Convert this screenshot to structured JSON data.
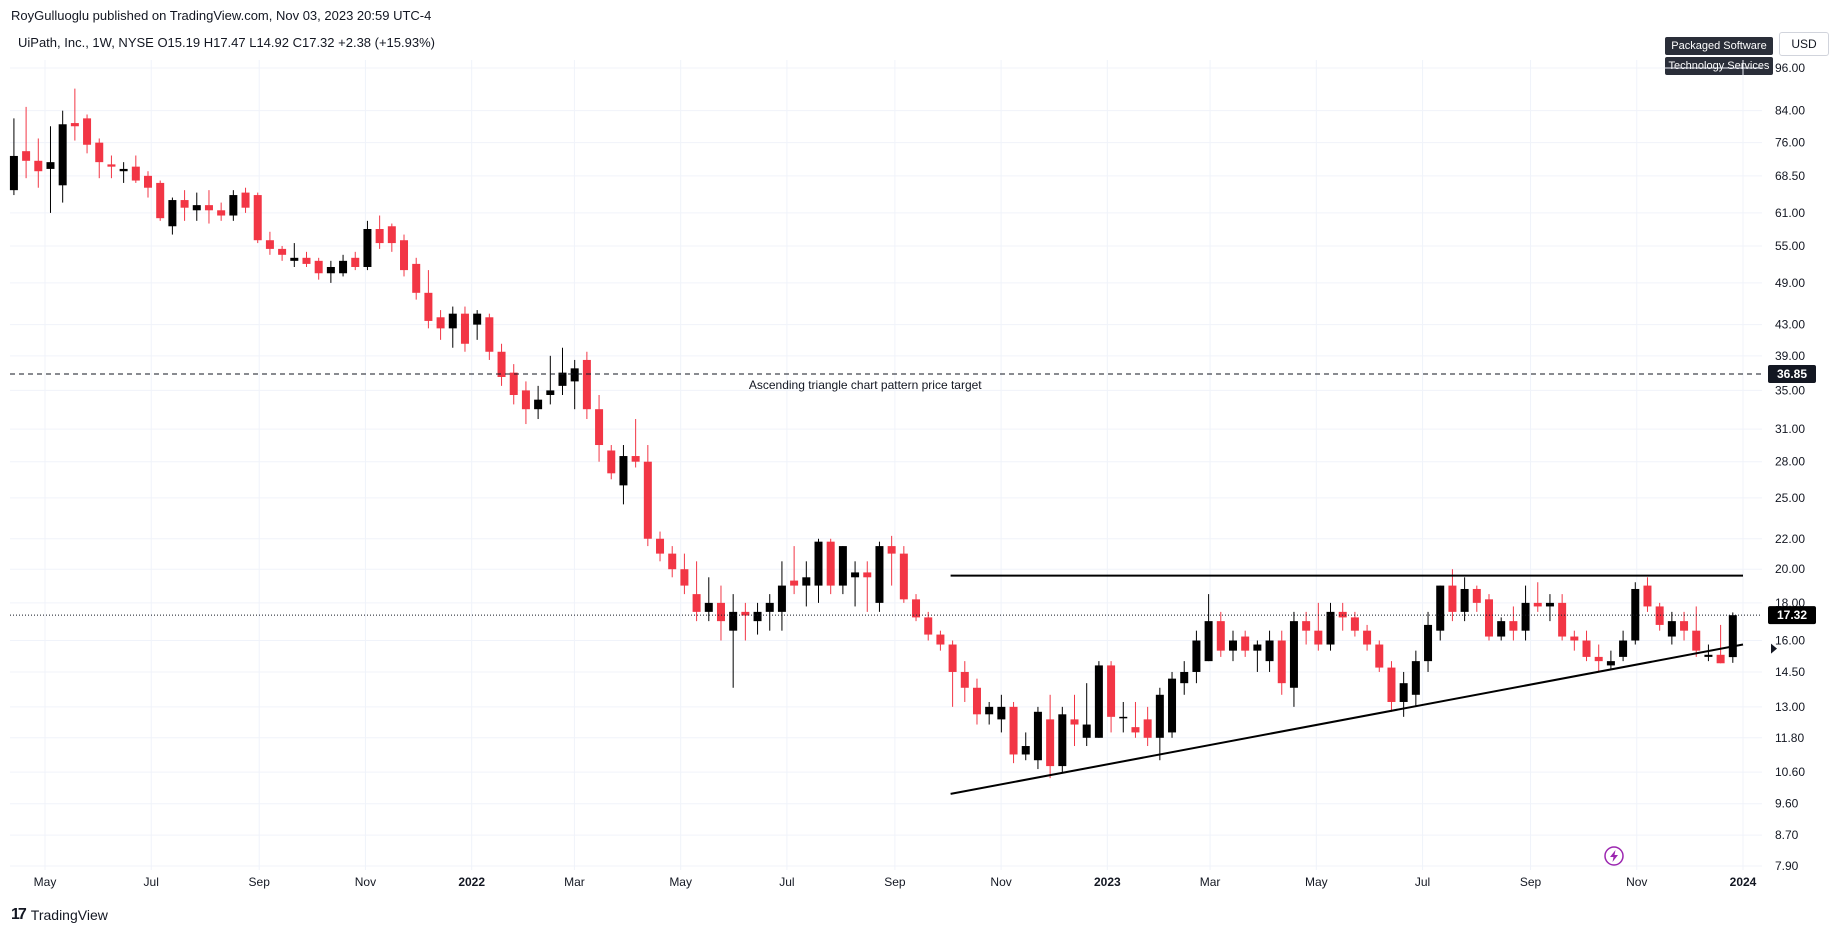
{
  "header": {
    "publisher_line": "RoyGulluoglu published on TradingView.com, Nov 03, 2023 20:59 UTC-4",
    "symbol_line": "UiPath, Inc., 1W, NYSE  O15.19  H17.47  L14.92  C17.32  +2.38 (+15.93%)"
  },
  "tags": {
    "sector": "Packaged Software",
    "industry": "Technology Services"
  },
  "currency": "USD",
  "footer": {
    "brand": "TradingView"
  },
  "colors": {
    "up": "#000000",
    "down": "#f23645",
    "grid": "#f0f3fa",
    "axis_text": "#131722"
  },
  "chart_data": {
    "type": "candlestick",
    "title": "UiPath, Inc., 1W, NYSE",
    "y_scale": "log",
    "ylim": [
      7.9,
      101
    ],
    "xlim": [
      "2021-04-12",
      "2024-01-29"
    ],
    "y_ticks": [
      96.0,
      84.0,
      76.0,
      68.5,
      61.0,
      55.0,
      49.0,
      43.0,
      39.0,
      35.0,
      31.0,
      28.0,
      25.0,
      22.0,
      20.0,
      18.0,
      16.0,
      14.5,
      13.0,
      11.8,
      10.6,
      9.6,
      8.7,
      7.9
    ],
    "x_ticks": [
      {
        "label": "May",
        "date": "2021-05-01",
        "bold": false
      },
      {
        "label": "Jul",
        "date": "2021-07-01",
        "bold": false
      },
      {
        "label": "Sep",
        "date": "2021-09-01",
        "bold": false
      },
      {
        "label": "Nov",
        "date": "2021-11-01",
        "bold": false
      },
      {
        "label": "2022",
        "date": "2022-01-01",
        "bold": true
      },
      {
        "label": "Mar",
        "date": "2022-03-01",
        "bold": false
      },
      {
        "label": "May",
        "date": "2022-05-01",
        "bold": false
      },
      {
        "label": "Jul",
        "date": "2022-07-01",
        "bold": false
      },
      {
        "label": "Sep",
        "date": "2022-09-01",
        "bold": false
      },
      {
        "label": "Nov",
        "date": "2022-11-01",
        "bold": false
      },
      {
        "label": "2023",
        "date": "2023-01-01",
        "bold": true
      },
      {
        "label": "Mar",
        "date": "2023-03-01",
        "bold": false
      },
      {
        "label": "May",
        "date": "2023-05-01",
        "bold": false
      },
      {
        "label": "Jul",
        "date": "2023-07-01",
        "bold": false
      },
      {
        "label": "Sep",
        "date": "2023-09-01",
        "bold": false
      },
      {
        "label": "Nov",
        "date": "2023-11-01",
        "bold": false
      },
      {
        "label": "2024",
        "date": "2024-01-01",
        "bold": true
      }
    ],
    "last_price": 17.32,
    "last_price_label": "17.32",
    "target_price": 36.85,
    "target_price_label": "36.85",
    "target_annotation": "Ascending triangle chart pattern price target",
    "resistance_line": {
      "from": "2022-10-03",
      "to": "2024-01-01",
      "price": 19.6
    },
    "support_line": {
      "from": "2022-10-03",
      "from_price": 9.9,
      "to": "2024-01-01",
      "to_price": 15.8
    },
    "candles": [
      {
        "o": 65.5,
        "h": 82.0,
        "l": 64.5,
        "c": 72.9
      },
      {
        "o": 74.0,
        "h": 85.0,
        "l": 68.0,
        "c": 71.8
      },
      {
        "o": 71.8,
        "h": 77.0,
        "l": 66.0,
        "c": 69.5
      },
      {
        "o": 70.0,
        "h": 80.0,
        "l": 61.0,
        "c": 71.5
      },
      {
        "o": 66.5,
        "h": 84.0,
        "l": 63.0,
        "c": 80.5
      },
      {
        "o": 80.8,
        "h": 90.0,
        "l": 76.5,
        "c": 80.0
      },
      {
        "o": 82.0,
        "h": 83.0,
        "l": 73.5,
        "c": 75.5
      },
      {
        "o": 76.0,
        "h": 77.0,
        "l": 68.0,
        "c": 71.5
      },
      {
        "o": 71.0,
        "h": 73.0,
        "l": 68.0,
        "c": 70.5
      },
      {
        "o": 69.5,
        "h": 71.5,
        "l": 67.0,
        "c": 70.0
      },
      {
        "o": 70.5,
        "h": 73.0,
        "l": 67.0,
        "c": 67.5
      },
      {
        "o": 68.5,
        "h": 69.5,
        "l": 64.0,
        "c": 66.0
      },
      {
        "o": 67.0,
        "h": 67.5,
        "l": 59.5,
        "c": 60.0
      },
      {
        "o": 58.5,
        "h": 64.0,
        "l": 57.0,
        "c": 63.5
      },
      {
        "o": 63.5,
        "h": 65.5,
        "l": 59.5,
        "c": 62.0
      },
      {
        "o": 61.5,
        "h": 65.0,
        "l": 59.5,
        "c": 62.5
      },
      {
        "o": 62.5,
        "h": 65.5,
        "l": 59.0,
        "c": 61.5
      },
      {
        "o": 61.5,
        "h": 63.0,
        "l": 59.5,
        "c": 60.5
      },
      {
        "o": 60.5,
        "h": 65.5,
        "l": 59.5,
        "c": 64.5
      },
      {
        "o": 65.0,
        "h": 66.0,
        "l": 61.0,
        "c": 62.0
      },
      {
        "o": 64.5,
        "h": 65.0,
        "l": 55.5,
        "c": 56.0
      },
      {
        "o": 56.0,
        "h": 57.5,
        "l": 53.5,
        "c": 54.5
      },
      {
        "o": 54.5,
        "h": 55.0,
        "l": 52.5,
        "c": 53.5
      },
      {
        "o": 52.5,
        "h": 55.5,
        "l": 51.5,
        "c": 53.0
      },
      {
        "o": 53.0,
        "h": 54.0,
        "l": 51.5,
        "c": 52.0
      },
      {
        "o": 52.5,
        "h": 53.0,
        "l": 49.5,
        "c": 50.5
      },
      {
        "o": 50.5,
        "h": 52.5,
        "l": 49.0,
        "c": 51.5
      },
      {
        "o": 50.5,
        "h": 53.5,
        "l": 50.0,
        "c": 52.5
      },
      {
        "o": 53.0,
        "h": 54.0,
        "l": 51.0,
        "c": 51.5
      },
      {
        "o": 51.5,
        "h": 59.5,
        "l": 51.0,
        "c": 58.0
      },
      {
        "o": 58.0,
        "h": 60.5,
        "l": 54.5,
        "c": 55.5
      },
      {
        "o": 58.5,
        "h": 59.0,
        "l": 54.0,
        "c": 55.5
      },
      {
        "o": 56.0,
        "h": 57.0,
        "l": 50.0,
        "c": 51.0
      },
      {
        "o": 52.0,
        "h": 53.0,
        "l": 46.5,
        "c": 47.5
      },
      {
        "o": 47.5,
        "h": 51.0,
        "l": 42.5,
        "c": 43.5
      },
      {
        "o": 44.0,
        "h": 45.0,
        "l": 41.0,
        "c": 42.5
      },
      {
        "o": 42.5,
        "h": 45.5,
        "l": 40.0,
        "c": 44.5
      },
      {
        "o": 44.5,
        "h": 45.5,
        "l": 39.5,
        "c": 40.5
      },
      {
        "o": 43.0,
        "h": 45.0,
        "l": 41.0,
        "c": 44.5
      },
      {
        "o": 44.0,
        "h": 44.5,
        "l": 38.5,
        "c": 39.5
      },
      {
        "o": 39.5,
        "h": 40.5,
        "l": 35.5,
        "c": 36.5
      },
      {
        "o": 37.0,
        "h": 38.0,
        "l": 33.5,
        "c": 34.5
      },
      {
        "o": 35.0,
        "h": 36.0,
        "l": 31.5,
        "c": 33.0
      },
      {
        "o": 33.0,
        "h": 35.5,
        "l": 32.0,
        "c": 34.0
      },
      {
        "o": 34.5,
        "h": 39.0,
        "l": 33.5,
        "c": 35.0
      },
      {
        "o": 35.5,
        "h": 40.0,
        "l": 34.5,
        "c": 37.0
      },
      {
        "o": 36.0,
        "h": 38.5,
        "l": 33.0,
        "c": 37.5
      },
      {
        "o": 38.5,
        "h": 39.5,
        "l": 32.0,
        "c": 33.0
      },
      {
        "o": 33.0,
        "h": 34.5,
        "l": 28.0,
        "c": 29.5
      },
      {
        "o": 29.0,
        "h": 29.5,
        "l": 26.5,
        "c": 27.0
      },
      {
        "o": 26.0,
        "h": 29.5,
        "l": 24.5,
        "c": 28.5
      },
      {
        "o": 28.5,
        "h": 32.0,
        "l": 27.5,
        "c": 28.0
      },
      {
        "o": 28.0,
        "h": 29.5,
        "l": 21.5,
        "c": 22.0
      },
      {
        "o": 22.0,
        "h": 22.5,
        "l": 20.5,
        "c": 21.0
      },
      {
        "o": 21.0,
        "h": 21.5,
        "l": 19.5,
        "c": 20.0
      },
      {
        "o": 20.0,
        "h": 21.0,
        "l": 18.5,
        "c": 19.0
      },
      {
        "o": 18.5,
        "h": 20.5,
        "l": 17.0,
        "c": 17.5
      },
      {
        "o": 17.5,
        "h": 19.5,
        "l": 17.0,
        "c": 18.0
      },
      {
        "o": 18.0,
        "h": 19.0,
        "l": 16.0,
        "c": 17.0
      },
      {
        "o": 16.5,
        "h": 18.5,
        "l": 13.8,
        "c": 17.5
      },
      {
        "o": 17.5,
        "h": 18.0,
        "l": 16.0,
        "c": 17.3
      },
      {
        "o": 17.0,
        "h": 18.0,
        "l": 16.3,
        "c": 17.5
      },
      {
        "o": 17.5,
        "h": 18.5,
        "l": 16.5,
        "c": 18.0
      },
      {
        "o": 17.5,
        "h": 20.5,
        "l": 16.5,
        "c": 19.0
      },
      {
        "o": 19.3,
        "h": 21.5,
        "l": 18.5,
        "c": 19.0
      },
      {
        "o": 19.0,
        "h": 20.5,
        "l": 17.8,
        "c": 19.5
      },
      {
        "o": 19.0,
        "h": 22.0,
        "l": 18.0,
        "c": 21.8
      },
      {
        "o": 21.8,
        "h": 22.0,
        "l": 18.5,
        "c": 19.0
      },
      {
        "o": 19.0,
        "h": 21.5,
        "l": 18.5,
        "c": 21.5
      },
      {
        "o": 19.5,
        "h": 20.5,
        "l": 17.8,
        "c": 19.8
      },
      {
        "o": 19.8,
        "h": 20.5,
        "l": 17.5,
        "c": 19.5
      },
      {
        "o": 18.0,
        "h": 21.8,
        "l": 17.5,
        "c": 21.5
      },
      {
        "o": 21.5,
        "h": 22.2,
        "l": 19.0,
        "c": 21.0
      },
      {
        "o": 21.0,
        "h": 21.5,
        "l": 18.0,
        "c": 18.2
      },
      {
        "o": 18.2,
        "h": 18.5,
        "l": 17.0,
        "c": 17.2
      },
      {
        "o": 17.2,
        "h": 17.5,
        "l": 16.0,
        "c": 16.3
      },
      {
        "o": 16.3,
        "h": 16.5,
        "l": 15.5,
        "c": 15.8
      },
      {
        "o": 15.8,
        "h": 16.0,
        "l": 13.0,
        "c": 14.5
      },
      {
        "o": 14.5,
        "h": 15.0,
        "l": 13.2,
        "c": 13.8
      },
      {
        "o": 13.8,
        "h": 14.2,
        "l": 12.3,
        "c": 12.7
      },
      {
        "o": 12.7,
        "h": 13.2,
        "l": 12.3,
        "c": 13.0
      },
      {
        "o": 12.5,
        "h": 13.5,
        "l": 12.0,
        "c": 13.0
      },
      {
        "o": 13.0,
        "h": 13.2,
        "l": 10.9,
        "c": 11.2
      },
      {
        "o": 11.2,
        "h": 12.0,
        "l": 11.0,
        "c": 11.5
      },
      {
        "o": 11.0,
        "h": 13.0,
        "l": 10.7,
        "c": 12.8
      },
      {
        "o": 12.5,
        "h": 13.5,
        "l": 10.4,
        "c": 10.8
      },
      {
        "o": 10.8,
        "h": 13.0,
        "l": 10.6,
        "c": 12.7
      },
      {
        "o": 12.5,
        "h": 13.5,
        "l": 11.5,
        "c": 12.3
      },
      {
        "o": 11.8,
        "h": 14.0,
        "l": 11.5,
        "c": 12.3
      },
      {
        "o": 11.8,
        "h": 15.0,
        "l": 11.8,
        "c": 14.8
      },
      {
        "o": 14.8,
        "h": 15.0,
        "l": 12.0,
        "c": 12.6
      },
      {
        "o": 12.6,
        "h": 13.2,
        "l": 12.0,
        "c": 12.6
      },
      {
        "o": 12.2,
        "h": 13.2,
        "l": 11.8,
        "c": 12.0
      },
      {
        "o": 12.5,
        "h": 13.0,
        "l": 11.5,
        "c": 11.8
      },
      {
        "o": 11.8,
        "h": 13.8,
        "l": 11.0,
        "c": 13.5
      },
      {
        "o": 12.0,
        "h": 14.5,
        "l": 11.8,
        "c": 14.2
      },
      {
        "o": 14.0,
        "h": 15.0,
        "l": 13.5,
        "c": 14.5
      },
      {
        "o": 14.5,
        "h": 16.5,
        "l": 14.0,
        "c": 16.0
      },
      {
        "o": 15.0,
        "h": 18.5,
        "l": 15.0,
        "c": 17.0
      },
      {
        "o": 17.0,
        "h": 17.5,
        "l": 15.2,
        "c": 15.5
      },
      {
        "o": 15.5,
        "h": 16.5,
        "l": 15.0,
        "c": 16.0
      },
      {
        "o": 16.2,
        "h": 16.5,
        "l": 15.2,
        "c": 15.5
      },
      {
        "o": 15.5,
        "h": 16.0,
        "l": 14.5,
        "c": 15.8
      },
      {
        "o": 15.0,
        "h": 16.5,
        "l": 14.5,
        "c": 16.0
      },
      {
        "o": 16.0,
        "h": 16.5,
        "l": 13.5,
        "c": 14.0
      },
      {
        "o": 13.8,
        "h": 17.5,
        "l": 13.0,
        "c": 17.0
      },
      {
        "o": 17.0,
        "h": 17.5,
        "l": 15.8,
        "c": 16.5
      },
      {
        "o": 16.5,
        "h": 18.0,
        "l": 15.5,
        "c": 15.8
      },
      {
        "o": 15.8,
        "h": 18.0,
        "l": 15.5,
        "c": 17.5
      },
      {
        "o": 17.5,
        "h": 18.0,
        "l": 16.5,
        "c": 17.2
      },
      {
        "o": 17.2,
        "h": 17.5,
        "l": 16.2,
        "c": 16.5
      },
      {
        "o": 16.5,
        "h": 16.8,
        "l": 15.5,
        "c": 15.8
      },
      {
        "o": 15.8,
        "h": 16.0,
        "l": 14.5,
        "c": 14.7
      },
      {
        "o": 14.7,
        "h": 15.0,
        "l": 12.8,
        "c": 13.2
      },
      {
        "o": 13.2,
        "h": 14.5,
        "l": 12.6,
        "c": 14.0
      },
      {
        "o": 13.5,
        "h": 15.5,
        "l": 13.0,
        "c": 15.0
      },
      {
        "o": 15.0,
        "h": 17.5,
        "l": 14.5,
        "c": 16.8
      },
      {
        "o": 16.5,
        "h": 19.0,
        "l": 16.0,
        "c": 19.0
      },
      {
        "o": 19.0,
        "h": 20.0,
        "l": 17.0,
        "c": 17.5
      },
      {
        "o": 17.5,
        "h": 19.5,
        "l": 17.0,
        "c": 18.8
      },
      {
        "o": 18.8,
        "h": 19.0,
        "l": 17.5,
        "c": 18.0
      },
      {
        "o": 18.2,
        "h": 18.5,
        "l": 16.0,
        "c": 16.2
      },
      {
        "o": 16.2,
        "h": 17.2,
        "l": 16.0,
        "c": 17.0
      },
      {
        "o": 17.0,
        "h": 17.8,
        "l": 16.0,
        "c": 16.5
      },
      {
        "o": 16.5,
        "h": 19.0,
        "l": 16.0,
        "c": 18.0
      },
      {
        "o": 18.0,
        "h": 19.2,
        "l": 17.5,
        "c": 17.8
      },
      {
        "o": 17.8,
        "h": 18.5,
        "l": 17.0,
        "c": 18.0
      },
      {
        "o": 18.0,
        "h": 18.5,
        "l": 16.0,
        "c": 16.2
      },
      {
        "o": 16.2,
        "h": 16.5,
        "l": 15.5,
        "c": 16.0
      },
      {
        "o": 16.0,
        "h": 16.5,
        "l": 15.0,
        "c": 15.2
      },
      {
        "o": 15.2,
        "h": 15.8,
        "l": 14.5,
        "c": 15.0
      },
      {
        "o": 14.8,
        "h": 15.5,
        "l": 14.6,
        "c": 15.0
      },
      {
        "o": 15.2,
        "h": 16.5,
        "l": 15.0,
        "c": 16.0
      },
      {
        "o": 16.0,
        "h": 19.2,
        "l": 15.8,
        "c": 18.8
      },
      {
        "o": 19.0,
        "h": 19.5,
        "l": 17.5,
        "c": 17.8
      },
      {
        "o": 17.8,
        "h": 18.0,
        "l": 16.5,
        "c": 16.8
      },
      {
        "o": 16.2,
        "h": 17.5,
        "l": 15.8,
        "c": 17.0
      },
      {
        "o": 17.0,
        "h": 17.5,
        "l": 16.0,
        "c": 16.5
      },
      {
        "o": 16.5,
        "h": 17.8,
        "l": 15.2,
        "c": 15.5
      },
      {
        "o": 15.2,
        "h": 15.8,
        "l": 15.0,
        "c": 15.3
      },
      {
        "o": 15.3,
        "h": 16.8,
        "l": 14.9,
        "c": 14.9
      },
      {
        "o": 15.19,
        "h": 17.47,
        "l": 14.92,
        "c": 17.32
      }
    ]
  }
}
